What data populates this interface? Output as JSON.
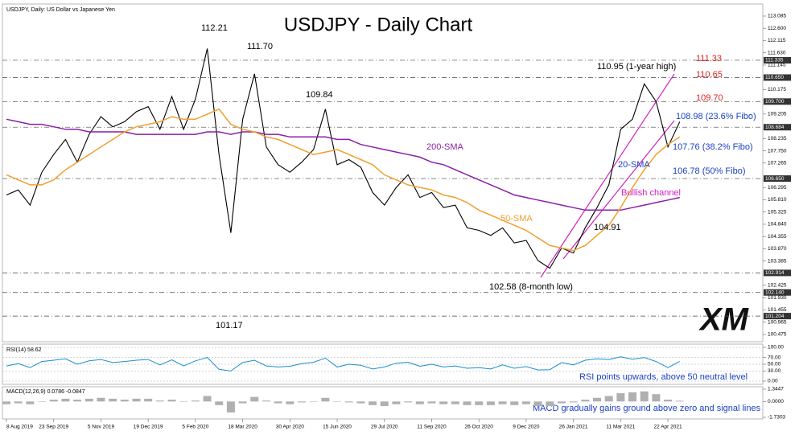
{
  "chart_data": [
    {
      "type": "line",
      "header": "USDJPY, Daily: US Dollar vs Japanese Yen",
      "title": "USDJPY - Daily Chart",
      "categories": [
        "8 Aug 2019",
        null,
        null,
        null,
        "23 Sep 2019",
        null,
        null,
        null,
        "5 Nov 2019",
        null,
        null,
        null,
        "19 Dec 2019",
        null,
        null,
        null,
        "5 Feb 2020",
        null,
        null,
        null,
        "18 Mar 2020",
        null,
        null,
        null,
        "30 Apr 2020",
        null,
        null,
        null,
        "15 Jun 2020",
        null,
        null,
        null,
        "29 Jul 2020",
        null,
        null,
        null,
        "11 Sep 2020",
        null,
        null,
        null,
        "26 Oct 2020",
        null,
        null,
        null,
        "9 Dec 2020",
        null,
        null,
        null,
        "26 Jan 2021",
        null,
        null,
        null,
        "11 Mar 2021",
        null,
        null,
        null,
        "22 Apr 2021",
        null
      ],
      "series": [
        {
          "color": "#000000",
          "values": [
            106.0,
            106.2,
            105.6,
            106.9,
            107.6,
            108.2,
            107.3,
            108.4,
            109.1,
            108.7,
            108.9,
            109.3,
            109.5,
            108.6,
            109.9,
            108.6,
            109.8,
            111.8,
            107.6,
            104.5,
            109.0,
            110.8,
            107.9,
            107.2,
            106.9,
            107.3,
            107.8,
            109.4,
            107.2,
            107.4,
            107.1,
            106.1,
            105.6,
            106.3,
            106.8,
            105.9,
            106.1,
            105.5,
            105.6,
            104.7,
            104.6,
            104.4,
            104.7,
            104.1,
            104.2,
            103.4,
            103.1,
            103.9,
            103.7,
            104.7,
            105.5,
            106.4,
            108.6,
            109.0,
            110.4,
            109.7,
            107.9,
            108.9
          ]
        },
        {
          "name": "200-SMA",
          "color": "#8b1fa8",
          "values": [
            109.0,
            108.9,
            108.8,
            108.8,
            108.7,
            108.6,
            108.6,
            108.5,
            108.5,
            108.5,
            108.5,
            108.4,
            108.4,
            108.4,
            108.4,
            108.4,
            108.4,
            108.5,
            108.5,
            108.4,
            108.5,
            108.5,
            108.4,
            108.4,
            108.3,
            108.3,
            108.3,
            108.3,
            108.2,
            108.2,
            108.0,
            107.9,
            107.8,
            107.7,
            107.6,
            107.5,
            107.3,
            107.2,
            107.0,
            106.8,
            106.6,
            106.4,
            106.2,
            106.0,
            105.9,
            105.8,
            105.7,
            105.6,
            105.5,
            105.4,
            105.4,
            105.4,
            105.4,
            105.5,
            105.6,
            105.7,
            105.8,
            105.9
          ]
        },
        {
          "name": "50-SMA",
          "color": "#f0a030",
          "values": [
            106.8,
            106.6,
            106.4,
            106.4,
            106.6,
            107.0,
            107.3,
            107.6,
            107.9,
            108.2,
            108.5,
            108.7,
            108.8,
            108.9,
            109.1,
            109.0,
            109.0,
            109.2,
            109.4,
            108.8,
            108.6,
            108.5,
            108.3,
            108.2,
            108.0,
            107.8,
            107.6,
            107.7,
            107.8,
            107.6,
            107.4,
            107.2,
            106.8,
            106.6,
            106.4,
            106.3,
            106.2,
            106.0,
            105.9,
            105.7,
            105.4,
            105.2,
            105.0,
            104.8,
            104.6,
            104.3,
            104.0,
            103.9,
            103.8,
            104.0,
            104.4,
            104.8,
            105.5,
            106.3,
            107.0,
            107.6,
            108.0,
            108.3
          ]
        }
      ],
      "ylim": [
        100.475,
        113.085
      ],
      "yticks": [
        {
          "value": 113.085,
          "label": "113.085"
        },
        {
          "value": 112.6,
          "label": "112.600"
        },
        {
          "value": 112.115,
          "label": "112.115"
        },
        {
          "value": 111.63,
          "label": "111.630"
        },
        {
          "value": 111.145,
          "label": "111.145"
        },
        {
          "value": 110.175,
          "label": "110.175"
        },
        {
          "value": 109.205,
          "label": "109.205"
        },
        {
          "value": 108.235,
          "label": "108.235"
        },
        {
          "value": 107.75,
          "label": "107.750"
        },
        {
          "value": 107.265,
          "label": "107.265"
        },
        {
          "value": 106.295,
          "label": "106.295"
        },
        {
          "value": 105.81,
          "label": "105.810"
        },
        {
          "value": 105.325,
          "label": "105.325"
        },
        {
          "value": 104.84,
          "label": "104.840"
        },
        {
          "value": 104.355,
          "label": "104.355"
        },
        {
          "value": 103.87,
          "label": "103.870"
        },
        {
          "value": 103.385,
          "label": "103.385"
        },
        {
          "value": 102.425,
          "label": "102.425"
        },
        {
          "value": 101.93,
          "label": "101.930"
        },
        {
          "value": 101.455,
          "label": "101.455"
        },
        {
          "value": 100.965,
          "label": "100.965"
        },
        {
          "value": 100.475,
          "label": "100.475"
        }
      ],
      "levels": [
        {
          "value": 111.335,
          "label": "111.335"
        },
        {
          "value": 110.65,
          "label": "110.650"
        },
        {
          "value": 109.7,
          "label": "109.700"
        },
        {
          "value": 108.684,
          "label": "108.684"
        },
        {
          "value": 106.65,
          "label": "106.650"
        },
        {
          "value": 102.914,
          "label": "102.914"
        },
        {
          "value": 102.14,
          "label": "102.140"
        },
        {
          "value": 101.204,
          "label": "101.204"
        }
      ],
      "annotations": [
        {
          "text": "112.21",
          "color": "#000000"
        },
        {
          "text": "111.70",
          "color": "#000000"
        },
        {
          "text": "109.84",
          "color": "#000000"
        },
        {
          "text": "101.17",
          "color": "#000000"
        },
        {
          "text": "110.95 (1-year high)",
          "color": "#000000"
        },
        {
          "text": "111.33",
          "color": "#e02020"
        },
        {
          "text": "110.65",
          "color": "#e02020"
        },
        {
          "text": "109.70",
          "color": "#e02020"
        },
        {
          "text": "108.98 (23.6% Fibo)",
          "color": "#1a3fc4"
        },
        {
          "text": "107.76 (38.2% Fibo)",
          "color": "#1a3fc4"
        },
        {
          "text": "106.78 (50% Fibo)",
          "color": "#1a3fc4"
        },
        {
          "text": "104.91",
          "color": "#000000"
        },
        {
          "text": "102.58 (8-month low)",
          "color": "#000000"
        },
        {
          "text": "20-SMA",
          "color": "#1a3fc4"
        },
        {
          "text": "Bullish channel",
          "color": "#d020c0"
        }
      ],
      "logo": "XM"
    },
    {
      "type": "line",
      "label": "RSI(14) 58.62",
      "note": "RSI points upwards, above 50 neutral level",
      "color": "#1a8fd0",
      "values": [
        45,
        52,
        40,
        58,
        62,
        66,
        50,
        60,
        64,
        55,
        58,
        62,
        64,
        48,
        63,
        45,
        60,
        70,
        35,
        30,
        55,
        62,
        45,
        42,
        44,
        52,
        56,
        68,
        42,
        50,
        47,
        36,
        42,
        53,
        56,
        44,
        50,
        42,
        45,
        38,
        40,
        36,
        48,
        38,
        43,
        33,
        34,
        55,
        48,
        62,
        66,
        64,
        72,
        65,
        70,
        58,
        40,
        58.62
      ],
      "ylim": [
        0,
        100
      ],
      "yticks": [
        {
          "value": 100,
          "label": "100.00"
        },
        {
          "value": 70,
          "label": "70.00"
        },
        {
          "value": 50,
          "label": "50.00"
        },
        {
          "value": 30,
          "label": "30.00"
        },
        {
          "value": 0,
          "label": "0.00"
        }
      ]
    },
    {
      "type": "bar",
      "label": "MACD(12,26,9) 0.0786 -0.0847",
      "note": "MACD gradually gains ground above zero and signal lines",
      "color": "#b0b0b0",
      "values": [
        -0.3,
        -0.2,
        -0.3,
        0,
        0.2,
        0.3,
        0.2,
        0.3,
        0.4,
        0.3,
        0.2,
        0.3,
        0.3,
        0.1,
        0.2,
        0,
        0.1,
        0.6,
        -0.4,
        -1.2,
        -0.2,
        0.5,
        0.1,
        -0.2,
        -0.3,
        -0.1,
        0,
        0.4,
        0,
        -0.1,
        -0.2,
        -0.4,
        -0.5,
        -0.3,
        -0.1,
        -0.3,
        -0.2,
        -0.3,
        -0.3,
        -0.4,
        -0.4,
        -0.4,
        -0.3,
        -0.4,
        -0.3,
        -0.5,
        -0.5,
        -0.2,
        -0.1,
        0.2,
        0.4,
        0.6,
        0.9,
        1.0,
        1.1,
        0.8,
        0.2,
        0.0786
      ],
      "ylim": [
        -1.7303,
        1.3447
      ],
      "yticks": [
        1.3447,
        {
          "value": 0,
          "label": "0.0000"
        },
        -1.7303
      ]
    }
  ]
}
